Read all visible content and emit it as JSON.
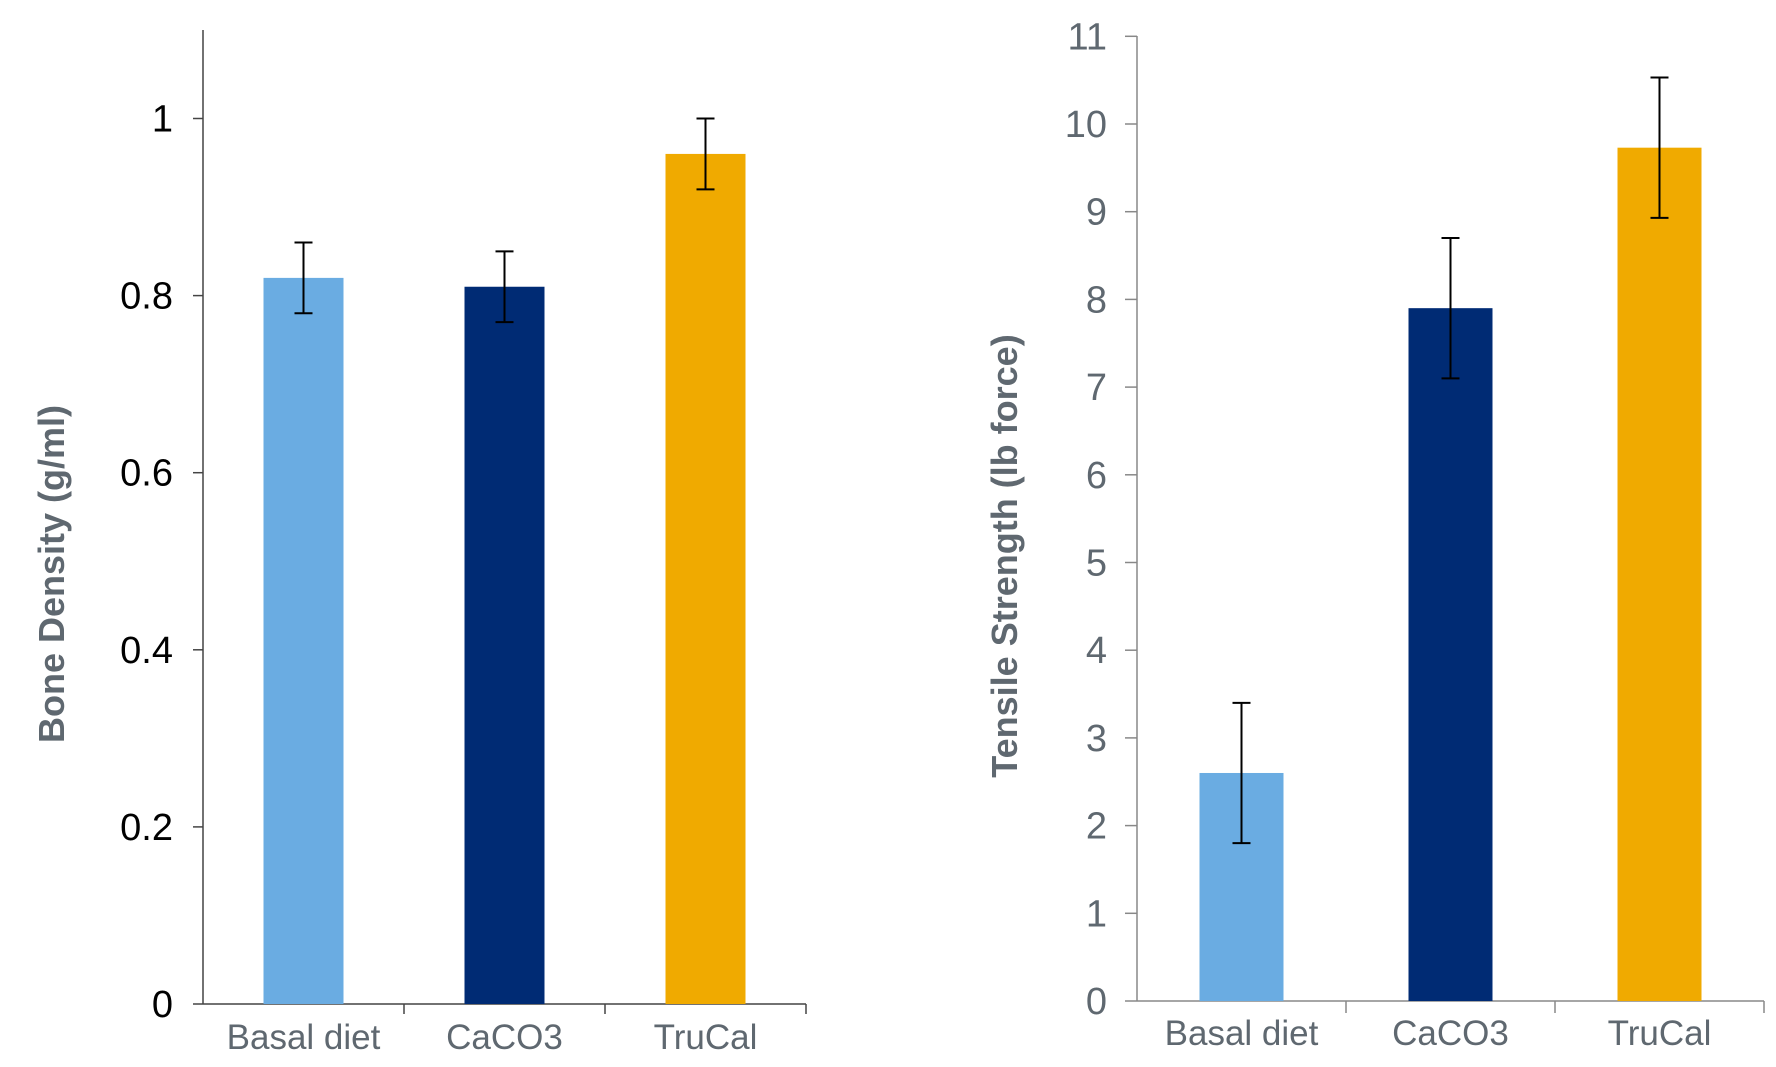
{
  "chart_data": [
    {
      "type": "bar",
      "categories": [
        "Basal diet",
        "CaCO3",
        "TruCal"
      ],
      "values": [
        0.82,
        0.81,
        0.96
      ],
      "error": [
        0.04,
        0.04,
        0.04
      ],
      "colors": [
        "#6aace2",
        "#002b74",
        "#f0aa00"
      ],
      "ylabel": "Bone Density (g/ml)",
      "ylim": [
        0,
        1.1
      ],
      "yticks": [
        0,
        0.2,
        0.4,
        0.6,
        0.8,
        1
      ],
      "ytick_labels": [
        "0",
        "0.2",
        "0.4",
        "0.6",
        "0.8",
        "1"
      ],
      "tick_label_color": "#000000",
      "grid": false
    },
    {
      "type": "bar",
      "categories": [
        "Basal diet",
        "CaCO3",
        "TruCal"
      ],
      "values": [
        2.6,
        7.9,
        9.73
      ],
      "error": [
        0.8,
        0.8,
        0.8
      ],
      "colors": [
        "#6aace2",
        "#002b74",
        "#f0aa00"
      ],
      "ylabel": "Tensile Strength (lb force)",
      "ylim": [
        0,
        11
      ],
      "yticks": [
        0,
        1,
        2,
        3,
        4,
        5,
        6,
        7,
        8,
        9,
        10,
        11
      ],
      "ytick_labels": [
        "0",
        "1",
        "2",
        "3",
        "4",
        "5",
        "6",
        "7",
        "8",
        "9",
        "10",
        "11"
      ],
      "tick_label_color": "#5f6870",
      "grid": false
    }
  ]
}
